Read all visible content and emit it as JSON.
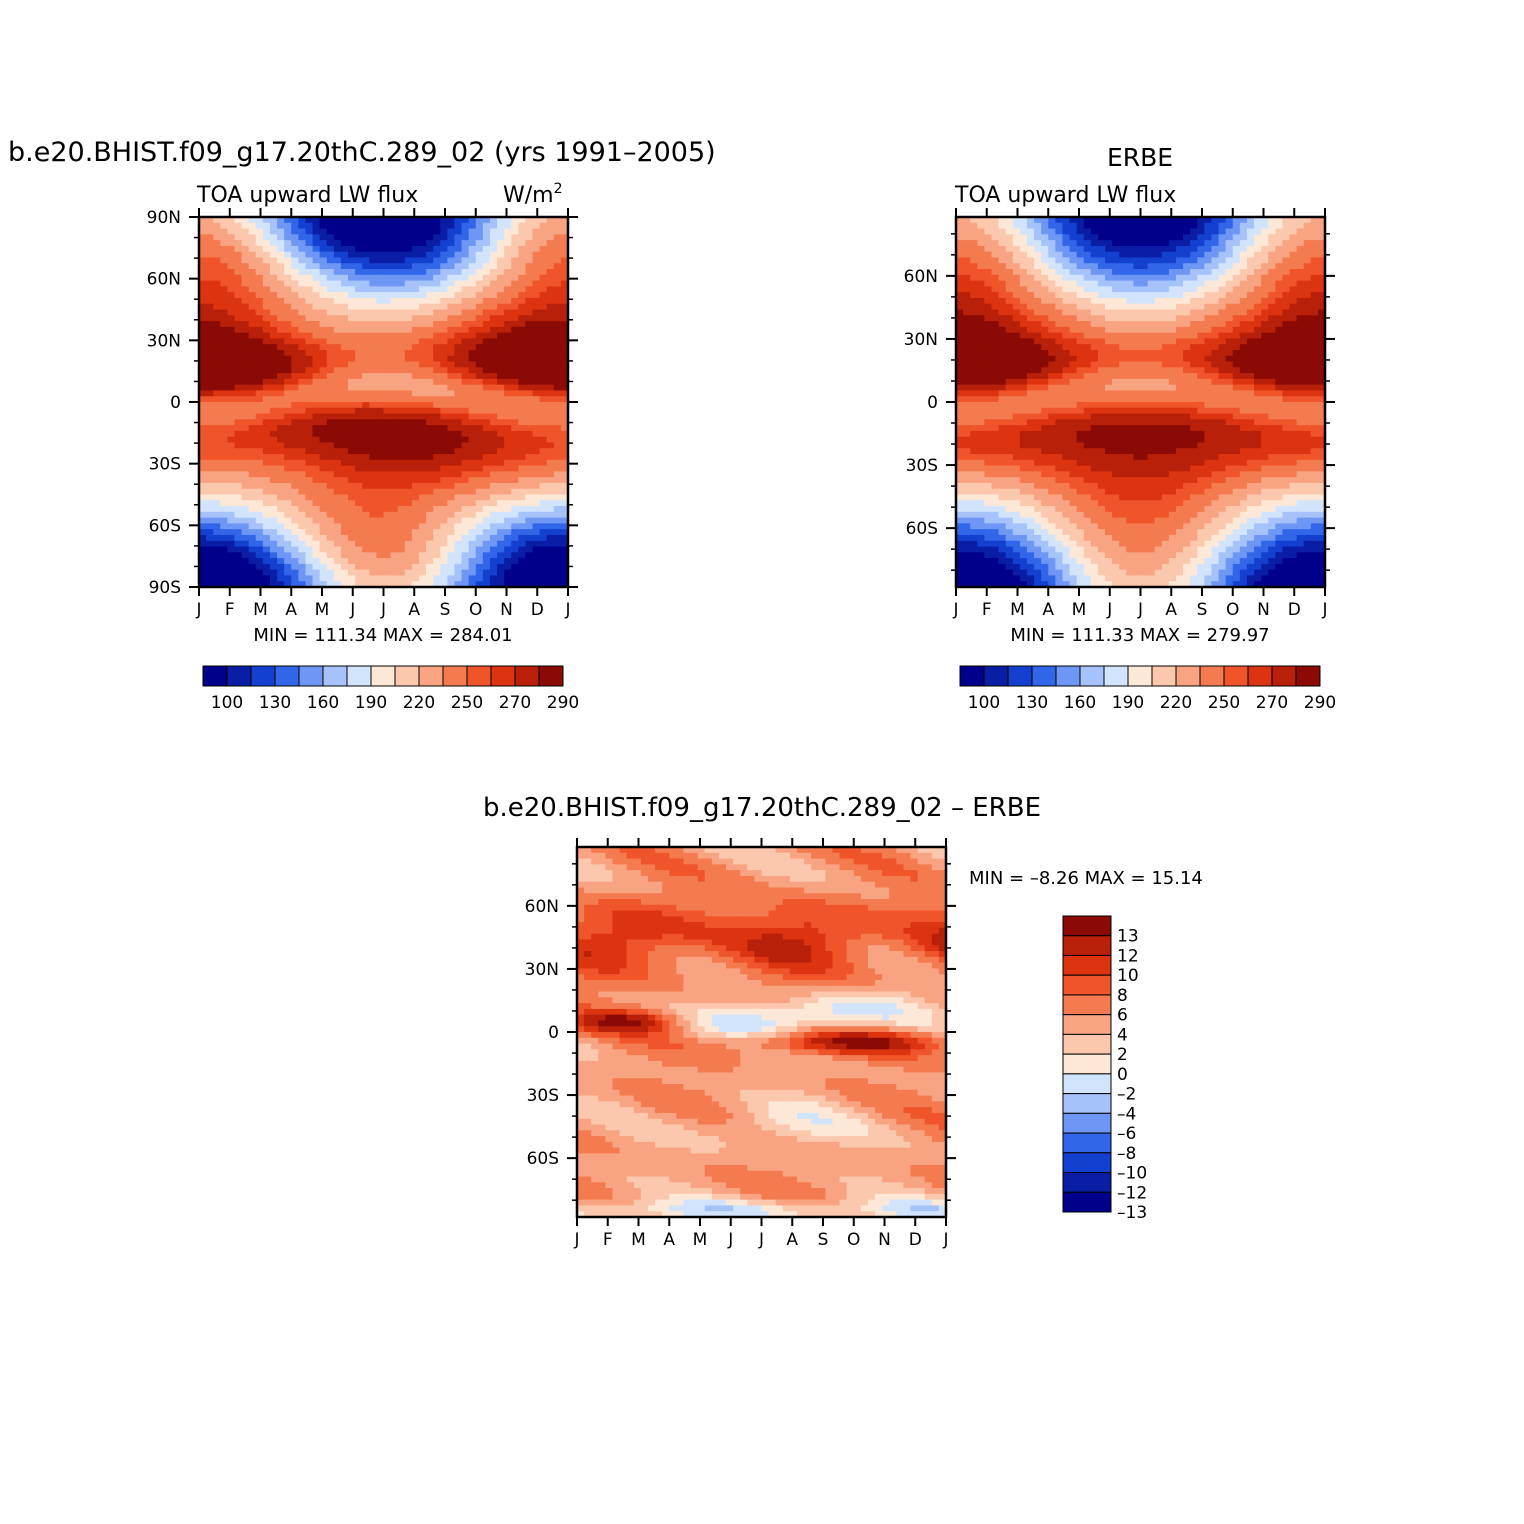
{
  "panels": {
    "model": {
      "title": "b.e20.BHIST.f09_g17.20thC.289_02 (yrs 1991–2005)",
      "left_label": "TOA upward LW flux",
      "units": "W/m",
      "units_sup": "2",
      "stats": "MIN = 111.34 MAX = 284.01"
    },
    "obs": {
      "title": "ERBE",
      "left_label": "TOA upward LW flux",
      "stats": "MIN = 111.33 MAX = 279.97"
    },
    "diff": {
      "title": "b.e20.BHIST.f09_g17.20thC.289_02 – ERBE",
      "stats": "MIN = –8.26 MAX = 15.14"
    }
  },
  "colors": {
    "abs_scale": [
      "#00008b",
      "#0a1ea5",
      "#1440d0",
      "#3266e8",
      "#6e96f5",
      "#a6c2fa",
      "#d2e4fc",
      "#fde8d8",
      "#fbc8ae",
      "#f8a482",
      "#f47a50",
      "#f0542a",
      "#dc3410",
      "#b8200a",
      "#8b0a05"
    ],
    "diff_scale": [
      "#00008b",
      "#0a1ea5",
      "#1440d0",
      "#3266e8",
      "#6e96f5",
      "#a6c2fa",
      "#d2e4fc",
      "#fde8d8",
      "#fbc8ae",
      "#f8a482",
      "#f47a50",
      "#f0542a",
      "#dc3410",
      "#b8200a",
      "#8b0a05"
    ]
  },
  "chart_data": [
    {
      "type": "heatmap",
      "panel": "model",
      "title": "b.e20.BHIST.f09_g17.20thC.289_02 (yrs 1991–2005)",
      "left_string": "TOA upward LW flux",
      "right_string": "W/m2",
      "x_tick_labels": [
        "J",
        "F",
        "M",
        "A",
        "M",
        "J",
        "J",
        "A",
        "S",
        "O",
        "N",
        "D",
        "J"
      ],
      "y_tick_labels": [
        "90N",
        "60N",
        "30N",
        "0",
        "30S",
        "60S",
        "90S"
      ],
      "y_ticks": [
        90,
        60,
        30,
        0,
        -30,
        -60,
        -90
      ],
      "ylim": [
        -90,
        90
      ],
      "colorbar_labels": [
        "100",
        "130",
        "160",
        "190",
        "220",
        "250",
        "270",
        "290"
      ],
      "colorbar_levels": [
        90,
        100,
        115,
        130,
        145,
        160,
        175,
        190,
        205,
        220,
        235,
        250,
        260,
        270,
        280,
        290
      ],
      "min": 111.34,
      "max": 284.01
    },
    {
      "type": "heatmap",
      "panel": "obs",
      "title": "ERBE",
      "left_string": "TOA upward LW flux",
      "x_tick_labels": [
        "J",
        "F",
        "M",
        "A",
        "M",
        "J",
        "J",
        "A",
        "S",
        "O",
        "N",
        "D",
        "J"
      ],
      "y_tick_labels": [
        "60N",
        "30N",
        "0",
        "30S",
        "60S"
      ],
      "y_ticks": [
        60,
        30,
        0,
        -30,
        -60
      ],
      "ylim": [
        -88,
        88
      ],
      "colorbar_labels": [
        "100",
        "130",
        "160",
        "190",
        "220",
        "250",
        "270",
        "290"
      ],
      "colorbar_levels": [
        90,
        100,
        115,
        130,
        145,
        160,
        175,
        190,
        205,
        220,
        235,
        250,
        260,
        270,
        280,
        290
      ],
      "min": 111.33,
      "max": 279.97
    },
    {
      "type": "heatmap",
      "panel": "diff",
      "title": "b.e20.BHIST.f09_g17.20thC.289_02 – ERBE",
      "x_tick_labels": [
        "J",
        "F",
        "M",
        "A",
        "M",
        "J",
        "J",
        "A",
        "S",
        "O",
        "N",
        "D",
        "J"
      ],
      "y_tick_labels": [
        "60N",
        "30N",
        "0",
        "30S",
        "60S"
      ],
      "y_ticks": [
        60,
        30,
        0,
        -30,
        -60
      ],
      "ylim": [
        -88,
        88
      ],
      "colorbar_labels": [
        "13",
        "12",
        "10",
        "8",
        "6",
        "4",
        "2",
        "0",
        "–2",
        "–4",
        "–6",
        "–8",
        "–10",
        "–12",
        "–13"
      ],
      "min": -8.26,
      "max": 15.14
    }
  ]
}
